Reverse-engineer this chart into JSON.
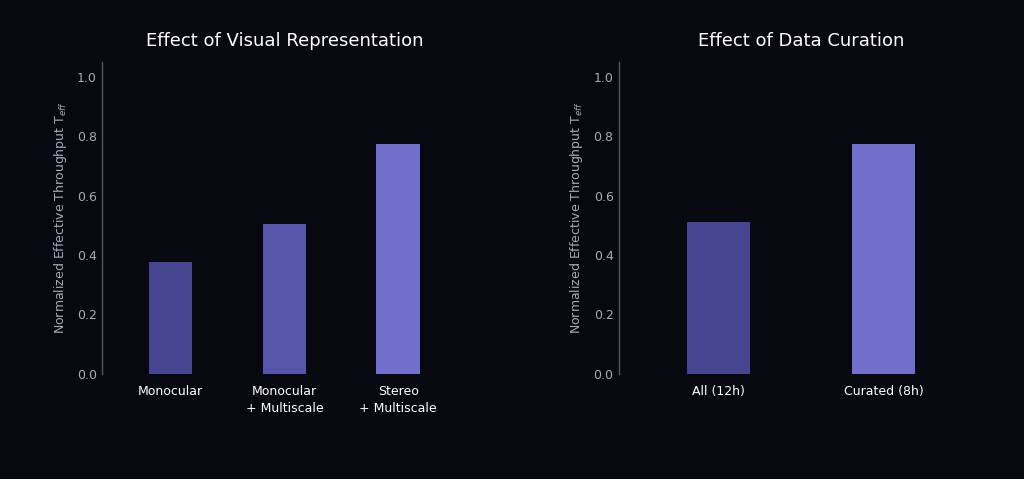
{
  "bg_color": "#080810",
  "text_color": "#aaaabb",
  "chart1": {
    "title": "Effect of Visual Representation",
    "categories": [
      "Monocular",
      "Monocular\n+ Multiscale",
      "Stereo\n+ Multiscale"
    ],
    "values": [
      0.375,
      0.505,
      0.775
    ],
    "bar_colors": [
      "#454590",
      "#5555aa",
      "#7070cc"
    ]
  },
  "chart2": {
    "title": "Effect of Data Curation",
    "categories": [
      "All (12h)",
      "Curated (8h)"
    ],
    "values": [
      0.51,
      0.775
    ],
    "bar_colors": [
      "#454590",
      "#7070cc"
    ]
  },
  "ylabel": "Normalized Effective Throughput T$_{eff}$",
  "ylim": [
    0,
    1.05
  ],
  "yticks": [
    0,
    0.2,
    0.4,
    0.6,
    0.8,
    1.0
  ],
  "title_fontsize": 13,
  "label_fontsize": 9,
  "tick_fontsize": 9,
  "spine_color": "#555566",
  "dotted_color": "#666677",
  "bar_width": 0.38
}
